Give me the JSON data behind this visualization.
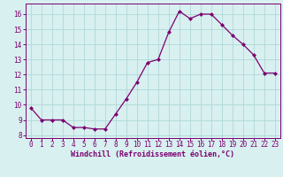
{
  "x": [
    0,
    1,
    2,
    3,
    4,
    5,
    6,
    7,
    8,
    9,
    10,
    11,
    12,
    13,
    14,
    15,
    16,
    17,
    18,
    19,
    20,
    21,
    22,
    23
  ],
  "y": [
    9.8,
    9.0,
    9.0,
    9.0,
    8.5,
    8.5,
    8.4,
    8.4,
    9.4,
    10.4,
    11.5,
    12.8,
    13.0,
    14.8,
    16.2,
    15.7,
    16.0,
    16.0,
    15.3,
    14.6,
    14.0,
    13.3,
    12.1,
    12.1
  ],
  "line_color": "#7B0070",
  "marker": "D",
  "marker_size": 2.5,
  "bg_color": "#d8f0f0",
  "grid_color": "#b0d8d8",
  "xlabel": "Windchill (Refroidissement éolien,°C)",
  "xlabel_color": "#7B0070",
  "tick_color": "#7B0070",
  "xlim": [
    -0.5,
    23.5
  ],
  "ylim": [
    7.8,
    16.7
  ],
  "yticks": [
    8,
    9,
    10,
    11,
    12,
    13,
    14,
    15,
    16
  ],
  "xticks": [
    0,
    1,
    2,
    3,
    4,
    5,
    6,
    7,
    8,
    9,
    10,
    11,
    12,
    13,
    14,
    15,
    16,
    17,
    18,
    19,
    20,
    21,
    22,
    23
  ],
  "tick_fontsize": 5.5,
  "xlabel_fontsize": 6,
  "xlabel_fontweight": "bold"
}
